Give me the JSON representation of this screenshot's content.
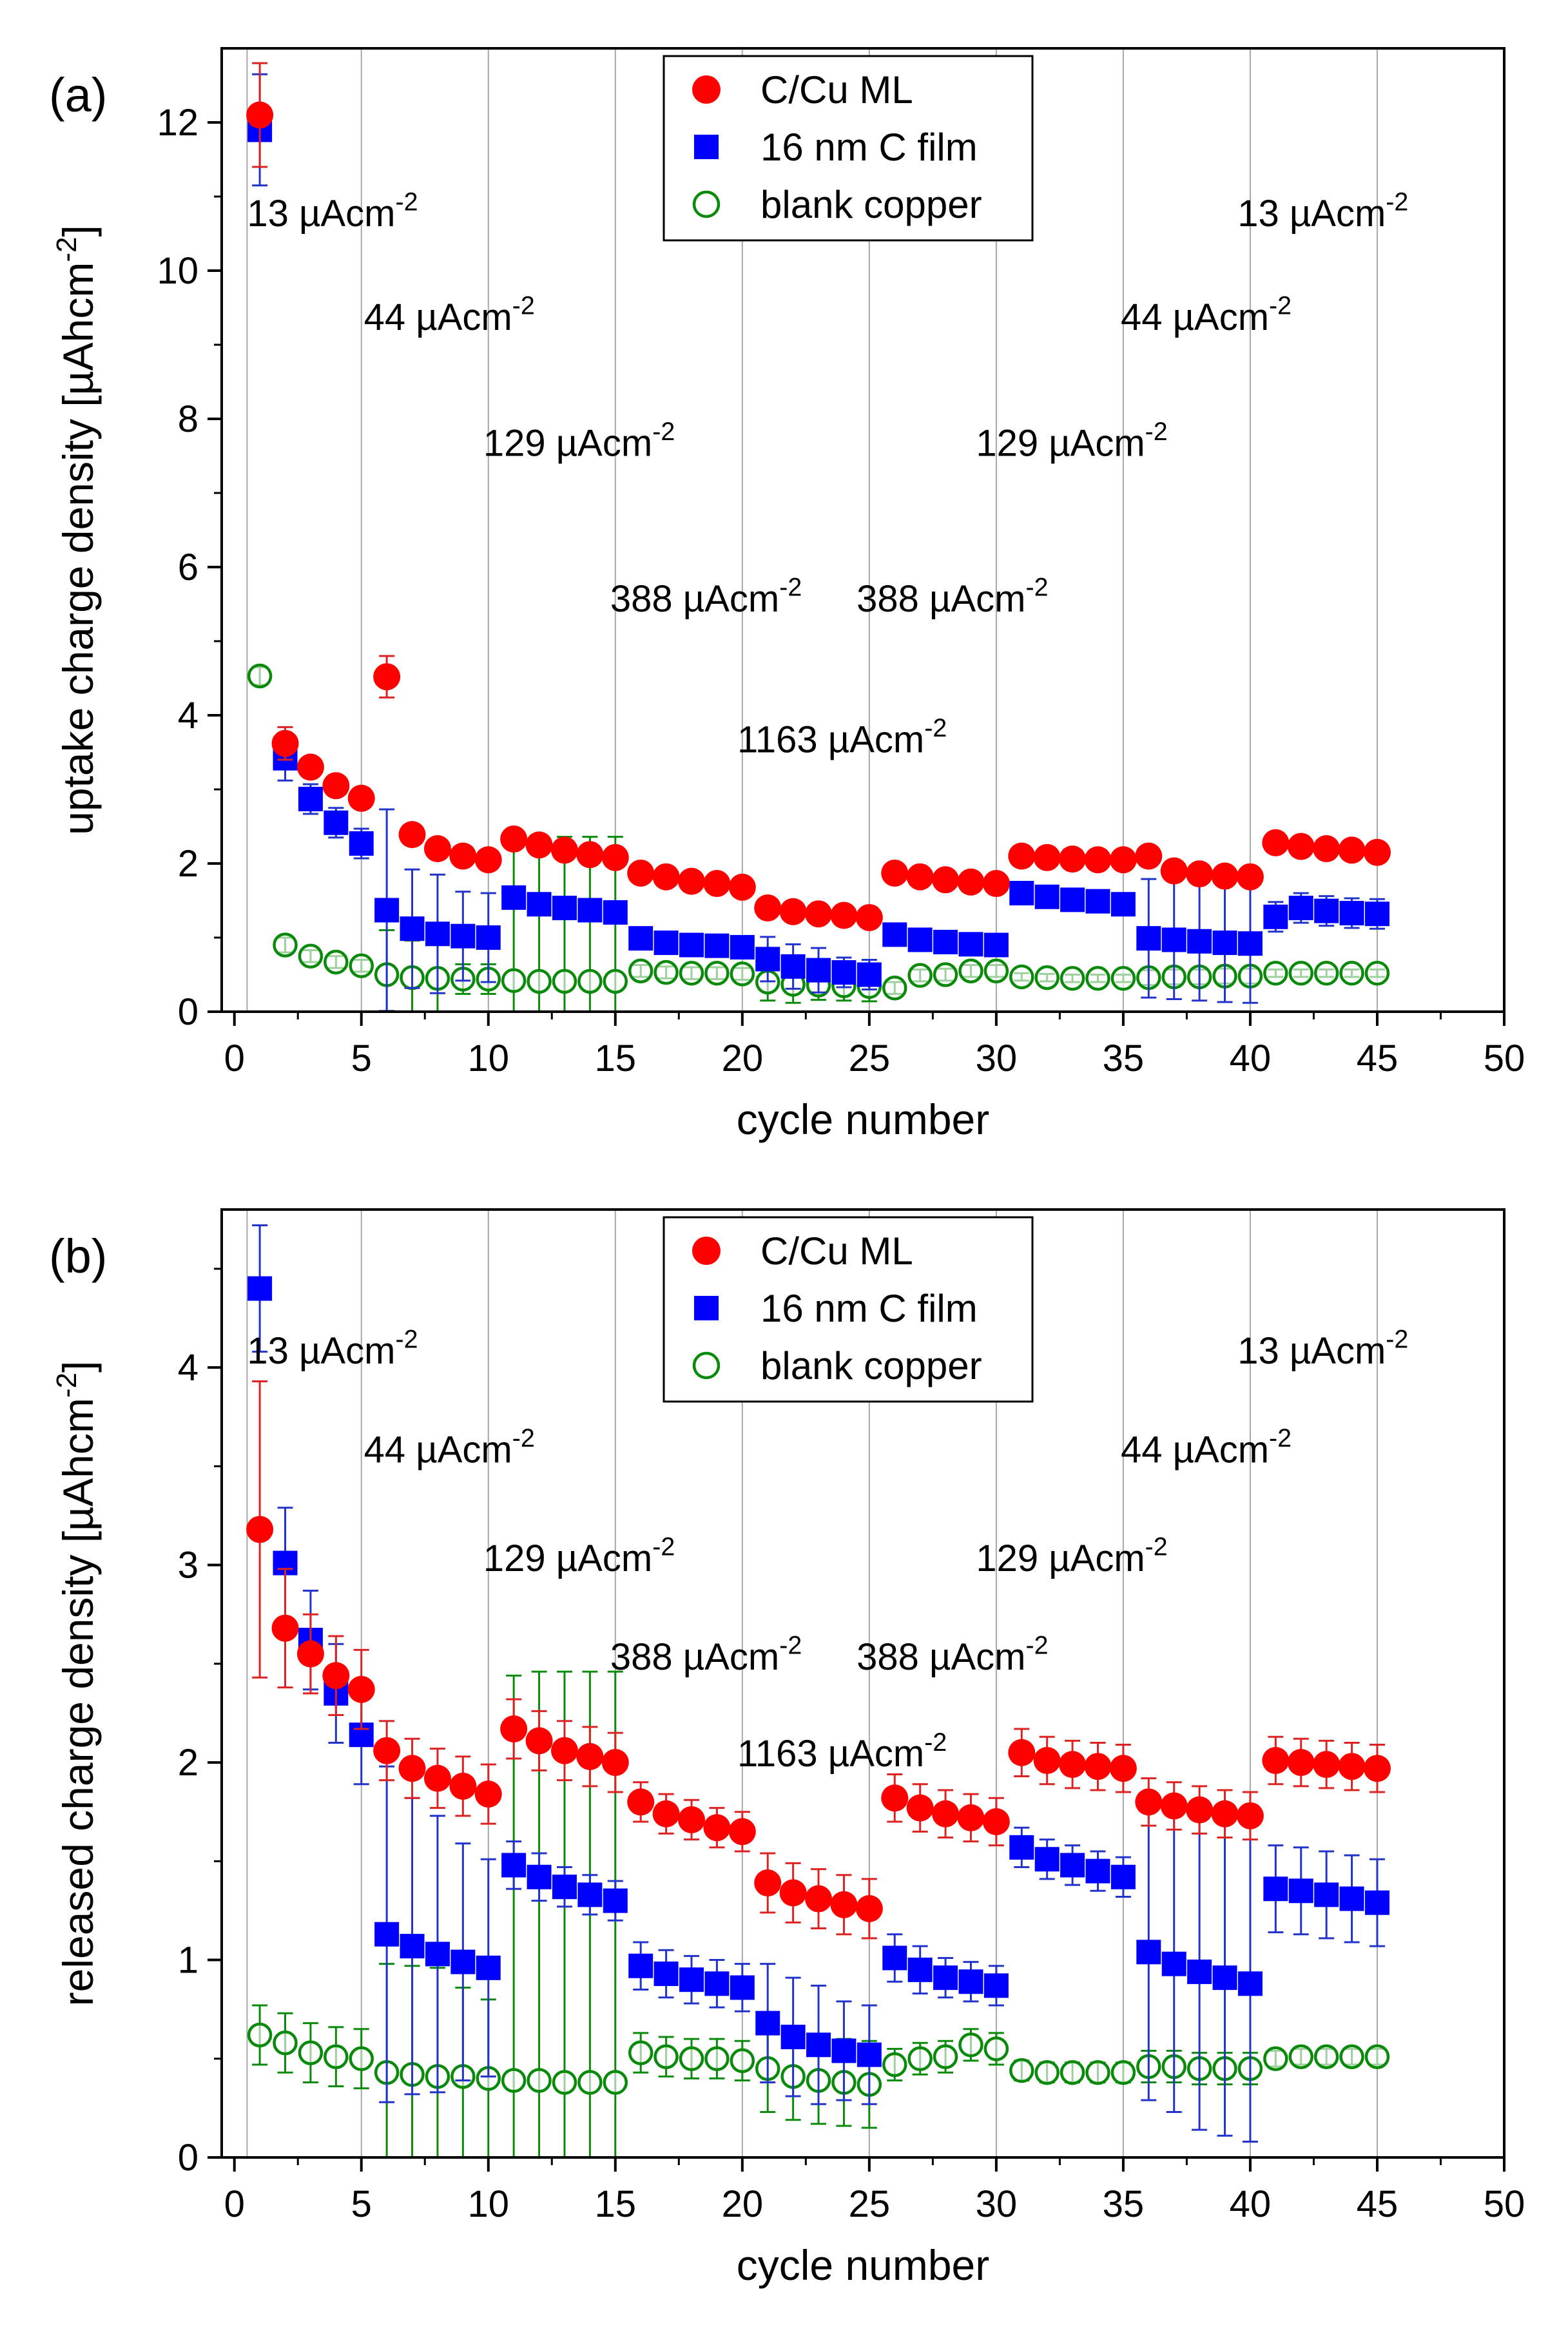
{
  "colors": {
    "cu_ml": "#ff0000",
    "cu_ml_err": "#dd2222",
    "c_film": "#0000ff",
    "c_film_err": "#2233cc",
    "blank": "#0a8a0a",
    "vlines": "#a8a8a8",
    "axis": "#000000"
  },
  "chart_data": [
    {
      "type": "scatter",
      "panel_label": "(a)",
      "xlabel": "cycle number",
      "ylabel_main": "uptake charge density [µAhcm",
      "ylabel_sup": "-2",
      "ylabel_end": "]",
      "xlim": [
        -0.5,
        50
      ],
      "ylim": [
        0,
        13
      ],
      "xticks": [
        0,
        5,
        10,
        15,
        20,
        25,
        30,
        35,
        40,
        45,
        50
      ],
      "yticks": [
        0,
        2,
        4,
        6,
        8,
        10,
        12
      ],
      "vlines": [
        0.5,
        5,
        10,
        15,
        20,
        25,
        30,
        35,
        40,
        45
      ],
      "legend_position": "top-center",
      "series": [
        {
          "name": "C/Cu ML",
          "marker": "filled-circle",
          "color": "#ff0000",
          "x": [
            1,
            2,
            3,
            4,
            5,
            6,
            7,
            8,
            9,
            10,
            11,
            12,
            13,
            14,
            15,
            16,
            17,
            18,
            19,
            20,
            21,
            22,
            23,
            24,
            25,
            26,
            27,
            28,
            29,
            30,
            31,
            32,
            33,
            34,
            35,
            36,
            37,
            38,
            39,
            40,
            41,
            42,
            43,
            44,
            45
          ],
          "y": [
            12.1,
            3.62,
            3.3,
            3.05,
            2.88,
            4.52,
            2.39,
            2.2,
            2.1,
            2.05,
            2.33,
            2.25,
            2.18,
            2.12,
            2.08,
            1.87,
            1.82,
            1.76,
            1.73,
            1.68,
            1.4,
            1.35,
            1.32,
            1.3,
            1.27,
            1.87,
            1.82,
            1.78,
            1.75,
            1.73,
            2.1,
            2.08,
            2.06,
            2.05,
            2.05,
            2.1,
            1.9,
            1.86,
            1.83,
            1.82,
            2.28,
            2.23,
            2.2,
            2.18,
            2.15
          ],
          "err": [
            0.7,
            0.22,
            0.1,
            0.05,
            0.05,
            0.28,
            0.05,
            0.05,
            0.05,
            0.05,
            0.05,
            0.05,
            0.05,
            0.05,
            0.05,
            0.05,
            0.05,
            0.05,
            0.05,
            0.05,
            0.05,
            0.05,
            0.05,
            0.05,
            0.05,
            0.05,
            0.05,
            0.05,
            0.05,
            0.05,
            0.05,
            0.05,
            0.05,
            0.05,
            0.05,
            0.05,
            0.05,
            0.05,
            0.05,
            0.05,
            0.05,
            0.05,
            0.05,
            0.05,
            0.05
          ]
        },
        {
          "name": "16 nm C film",
          "marker": "filled-square",
          "color": "#0000ff",
          "x": [
            1,
            2,
            3,
            4,
            5,
            6,
            7,
            8,
            9,
            10,
            11,
            12,
            13,
            14,
            15,
            16,
            17,
            18,
            19,
            20,
            21,
            22,
            23,
            24,
            25,
            26,
            27,
            28,
            29,
            30,
            31,
            32,
            33,
            34,
            35,
            36,
            37,
            38,
            39,
            40,
            41,
            42,
            43,
            44,
            45
          ],
          "y": [
            11.9,
            3.42,
            2.87,
            2.55,
            2.27,
            1.37,
            1.12,
            1.05,
            1.02,
            1.0,
            1.54,
            1.45,
            1.4,
            1.37,
            1.34,
            0.99,
            0.93,
            0.9,
            0.89,
            0.87,
            0.71,
            0.61,
            0.56,
            0.53,
            0.5,
            1.04,
            0.97,
            0.94,
            0.91,
            0.9,
            1.6,
            1.55,
            1.51,
            1.49,
            1.45,
            0.99,
            0.97,
            0.95,
            0.93,
            0.92,
            1.28,
            1.4,
            1.36,
            1.33,
            1.32
          ],
          "err": [
            0.75,
            0.3,
            0.2,
            0.2,
            0.2,
            1.36,
            0.8,
            0.8,
            0.6,
            0.6,
            0.15,
            0.12,
            0.1,
            0.1,
            0.1,
            0.1,
            0.1,
            0.1,
            0.1,
            0.1,
            0.3,
            0.3,
            0.3,
            0.2,
            0.2,
            0.08,
            0.08,
            0.08,
            0.08,
            0.08,
            0.08,
            0.08,
            0.08,
            0.08,
            0.08,
            0.8,
            0.8,
            0.8,
            0.8,
            0.8,
            0.2,
            0.2,
            0.2,
            0.2,
            0.2
          ]
        },
        {
          "name": "blank copper",
          "marker": "open-circle",
          "color": "#0a8a0a",
          "x": [
            1,
            2,
            3,
            4,
            5,
            6,
            7,
            8,
            9,
            10,
            11,
            12,
            13,
            14,
            15,
            16,
            17,
            18,
            19,
            20,
            21,
            22,
            23,
            24,
            25,
            26,
            27,
            28,
            29,
            30,
            31,
            32,
            33,
            34,
            35,
            36,
            37,
            38,
            39,
            40,
            41,
            42,
            43,
            44,
            45
          ],
          "y": [
            4.53,
            0.9,
            0.75,
            0.67,
            0.62,
            0.5,
            0.46,
            0.45,
            0.44,
            0.44,
            0.42,
            0.41,
            0.41,
            0.41,
            0.41,
            0.55,
            0.53,
            0.52,
            0.52,
            0.51,
            0.4,
            0.37,
            0.36,
            0.35,
            0.34,
            0.32,
            0.49,
            0.5,
            0.55,
            0.55,
            0.47,
            0.46,
            0.45,
            0.45,
            0.45,
            0.46,
            0.47,
            0.47,
            0.48,
            0.48,
            0.52,
            0.52,
            0.52,
            0.52,
            0.52
          ],
          "err": [
            0.12,
            0.1,
            0.08,
            0.08,
            0.08,
            0.6,
            0.5,
            0.45,
            0.2,
            0.2,
            1.9,
            1.95,
            1.95,
            1.95,
            1.95,
            0.08,
            0.08,
            0.08,
            0.08,
            0.08,
            0.25,
            0.25,
            0.2,
            0.2,
            0.2,
            0.08,
            0.08,
            0.08,
            0.08,
            0.08,
            0.05,
            0.05,
            0.05,
            0.05,
            0.05,
            0.1,
            0.1,
            0.1,
            0.1,
            0.1,
            0.05,
            0.05,
            0.05,
            0.05,
            0.05
          ]
        }
      ],
      "annotations": [
        {
          "text": "13 µAcm",
          "sup": "-2",
          "x": 0.5,
          "y": 10.6
        },
        {
          "text": "44 µAcm",
          "sup": "-2",
          "x": 5.1,
          "y": 9.2
        },
        {
          "text": "129 µAcm",
          "sup": "-2",
          "x": 9.8,
          "y": 7.5
        },
        {
          "text": "388 µAcm",
          "sup": "-2",
          "x": 14.8,
          "y": 5.4
        },
        {
          "text": "1163 µAcm",
          "sup": "-2",
          "x": 19.8,
          "y": 3.5
        },
        {
          "text": "388 µAcm",
          "sup": "-2",
          "x": 24.5,
          "y": 5.4
        },
        {
          "text": "129 µAcm",
          "sup": "-2",
          "x": 29.2,
          "y": 7.5
        },
        {
          "text": "44 µAcm",
          "sup": "-2",
          "x": 34.9,
          "y": 9.2
        },
        {
          "text": "13 µAcm",
          "sup": "-2",
          "x": 39.5,
          "y": 10.6
        }
      ]
    },
    {
      "type": "scatter",
      "panel_label": "(b)",
      "xlabel": "cycle number",
      "ylabel_main": "released charge density [µAhcm",
      "ylabel_sup": "-2",
      "ylabel_end": "]",
      "xlim": [
        -0.5,
        50
      ],
      "ylim": [
        0,
        4.8
      ],
      "xticks": [
        0,
        5,
        10,
        15,
        20,
        25,
        30,
        35,
        40,
        45,
        50
      ],
      "yticks": [
        0,
        1,
        2,
        3,
        4
      ],
      "vlines": [
        0.5,
        5,
        10,
        15,
        20,
        25,
        30,
        35,
        40,
        45
      ],
      "legend_position": "top-center",
      "series": [
        {
          "name": "C/Cu ML",
          "marker": "filled-circle",
          "color": "#ff0000",
          "x": [
            1,
            2,
            3,
            4,
            5,
            6,
            7,
            8,
            9,
            10,
            11,
            12,
            13,
            14,
            15,
            16,
            17,
            18,
            19,
            20,
            21,
            22,
            23,
            24,
            25,
            26,
            27,
            28,
            29,
            30,
            31,
            32,
            33,
            34,
            35,
            36,
            37,
            38,
            39,
            40,
            41,
            42,
            43,
            44,
            45
          ],
          "y": [
            3.18,
            2.68,
            2.55,
            2.44,
            2.37,
            2.06,
            1.97,
            1.92,
            1.88,
            1.84,
            2.17,
            2.11,
            2.06,
            2.03,
            2.0,
            1.8,
            1.74,
            1.71,
            1.67,
            1.65,
            1.39,
            1.34,
            1.31,
            1.28,
            1.26,
            1.82,
            1.77,
            1.74,
            1.72,
            1.7,
            2.05,
            2.01,
            1.99,
            1.98,
            1.97,
            1.8,
            1.78,
            1.76,
            1.74,
            1.73,
            2.01,
            2.0,
            1.99,
            1.98,
            1.97
          ],
          "err": [
            0.75,
            0.3,
            0.2,
            0.2,
            0.2,
            0.15,
            0.15,
            0.15,
            0.15,
            0.15,
            0.15,
            0.15,
            0.15,
            0.15,
            0.15,
            0.1,
            0.1,
            0.1,
            0.1,
            0.1,
            0.15,
            0.15,
            0.15,
            0.15,
            0.15,
            0.12,
            0.12,
            0.12,
            0.12,
            0.12,
            0.12,
            0.12,
            0.12,
            0.12,
            0.12,
            0.12,
            0.12,
            0.12,
            0.12,
            0.12,
            0.12,
            0.12,
            0.12,
            0.12,
            0.12
          ]
        },
        {
          "name": "16 nm C film",
          "marker": "filled-square",
          "color": "#0000ff",
          "x": [
            1,
            2,
            3,
            4,
            5,
            6,
            7,
            8,
            9,
            10,
            11,
            12,
            13,
            14,
            15,
            16,
            17,
            18,
            19,
            20,
            21,
            22,
            23,
            24,
            25,
            26,
            27,
            28,
            29,
            30,
            31,
            32,
            33,
            34,
            35,
            36,
            37,
            38,
            39,
            40,
            41,
            42,
            43,
            44,
            45
          ],
          "y": [
            4.4,
            3.01,
            2.62,
            2.35,
            2.14,
            1.13,
            1.07,
            1.03,
            0.99,
            0.96,
            1.48,
            1.42,
            1.37,
            1.33,
            1.3,
            0.97,
            0.93,
            0.9,
            0.88,
            0.86,
            0.68,
            0.61,
            0.57,
            0.54,
            0.52,
            1.01,
            0.95,
            0.91,
            0.89,
            0.87,
            1.57,
            1.51,
            1.48,
            1.45,
            1.42,
            1.04,
            0.98,
            0.94,
            0.91,
            0.88,
            1.36,
            1.35,
            1.33,
            1.31,
            1.29
          ],
          "err": [
            0.32,
            0.28,
            0.25,
            0.25,
            0.25,
            0.85,
            0.75,
            0.7,
            0.6,
            0.55,
            0.12,
            0.12,
            0.1,
            0.1,
            0.1,
            0.12,
            0.12,
            0.12,
            0.12,
            0.12,
            0.3,
            0.3,
            0.3,
            0.25,
            0.25,
            0.12,
            0.12,
            0.1,
            0.1,
            0.1,
            0.1,
            0.1,
            0.1,
            0.1,
            0.1,
            0.75,
            0.75,
            0.8,
            0.8,
            0.8,
            0.22,
            0.22,
            0.22,
            0.22,
            0.22
          ]
        },
        {
          "name": "blank copper",
          "marker": "open-circle",
          "color": "#0a8a0a",
          "x": [
            1,
            2,
            3,
            4,
            5,
            6,
            7,
            8,
            9,
            10,
            11,
            12,
            13,
            14,
            15,
            16,
            17,
            18,
            19,
            20,
            21,
            22,
            23,
            24,
            25,
            26,
            27,
            28,
            29,
            30,
            31,
            32,
            33,
            34,
            35,
            36,
            37,
            38,
            39,
            40,
            41,
            42,
            43,
            44,
            45
          ],
          "y": [
            0.62,
            0.58,
            0.53,
            0.51,
            0.5,
            0.43,
            0.42,
            0.41,
            0.41,
            0.4,
            0.39,
            0.39,
            0.38,
            0.38,
            0.38,
            0.53,
            0.51,
            0.5,
            0.5,
            0.49,
            0.45,
            0.41,
            0.39,
            0.38,
            0.37,
            0.47,
            0.5,
            0.51,
            0.57,
            0.55,
            0.44,
            0.43,
            0.43,
            0.43,
            0.43,
            0.46,
            0.46,
            0.45,
            0.45,
            0.45,
            0.5,
            0.51,
            0.51,
            0.51,
            0.51
          ],
          "err": [
            0.15,
            0.15,
            0.15,
            0.15,
            0.15,
            0.55,
            0.55,
            0.55,
            0.45,
            0.4,
            2.05,
            2.07,
            2.08,
            2.08,
            2.08,
            0.1,
            0.1,
            0.1,
            0.1,
            0.1,
            0.22,
            0.22,
            0.22,
            0.22,
            0.22,
            0.08,
            0.08,
            0.08,
            0.08,
            0.08,
            0.05,
            0.05,
            0.05,
            0.05,
            0.05,
            0.08,
            0.08,
            0.08,
            0.08,
            0.08,
            0.04,
            0.04,
            0.04,
            0.04,
            0.04
          ]
        }
      ],
      "annotations": [
        {
          "text": "13 µAcm",
          "sup": "-2",
          "x": 0.5,
          "y": 4.02
        },
        {
          "text": "44 µAcm",
          "sup": "-2",
          "x": 5.1,
          "y": 3.52
        },
        {
          "text": "129 µAcm",
          "sup": "-2",
          "x": 9.8,
          "y": 2.97
        },
        {
          "text": "388 µAcm",
          "sup": "-2",
          "x": 14.8,
          "y": 2.47
        },
        {
          "text": "1163 µAcm",
          "sup": "-2",
          "x": 19.8,
          "y": 1.98
        },
        {
          "text": "388 µAcm",
          "sup": "-2",
          "x": 24.5,
          "y": 2.47
        },
        {
          "text": "129 µAcm",
          "sup": "-2",
          "x": 29.2,
          "y": 2.97
        },
        {
          "text": "44 µAcm",
          "sup": "-2",
          "x": 34.9,
          "y": 3.52
        },
        {
          "text": "13 µAcm",
          "sup": "-2",
          "x": 39.5,
          "y": 4.02
        }
      ]
    }
  ]
}
